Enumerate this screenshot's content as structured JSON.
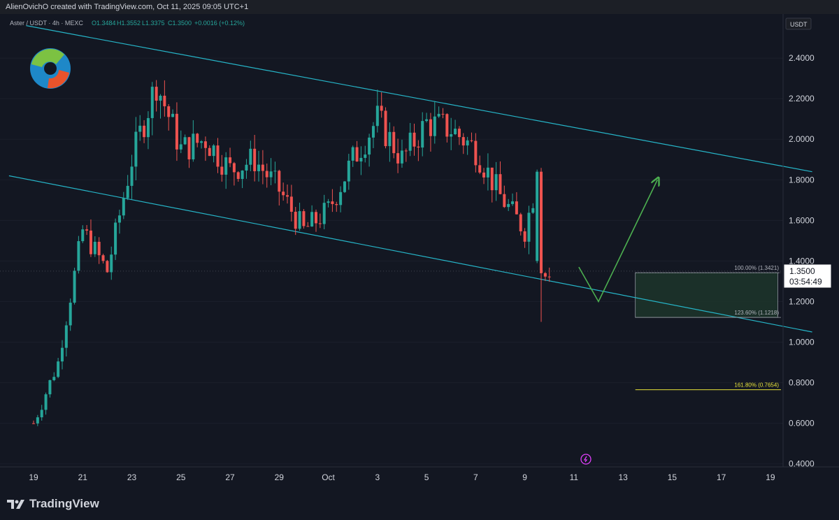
{
  "header": {
    "credit": "AlienOvichO created with TradingView.com, Oct 11, 2025 09:05 UTC+1"
  },
  "legend": {
    "symbol": "Aster / USDT · 4h · MEXC",
    "open": "O1.3484",
    "high": "H1.3552",
    "low": "L1.3375",
    "close": "C1.3500",
    "change": "+0.0016 (+0.12%)"
  },
  "currency": "USDT",
  "price_tag": {
    "price": "1.3500",
    "countdown": "03:54:49"
  },
  "brand": "TradingView",
  "colors": {
    "background": "#131722",
    "up": "#26a69a",
    "down": "#ef5350",
    "channel": "#26b5c8",
    "zone": "#1f3a2c",
    "projection": "#4caf50",
    "fib_yellow": "#e6e13a"
  },
  "chart_data": {
    "type": "candlestick",
    "title": "",
    "xlabel": "",
    "ylabel": "",
    "ylim": [
      0.4,
      2.6
    ],
    "y_ticks": [
      "2.4000",
      "2.2000",
      "2.0000",
      "1.8000",
      "1.6000",
      "1.4000",
      "1.2000",
      "1.0000",
      "0.8000",
      "0.6000",
      "0.4000"
    ],
    "x_ticks": [
      "19",
      "21",
      "23",
      "25",
      "27",
      "29",
      "Oct",
      "3",
      "5",
      "7",
      "9",
      "11",
      "13",
      "15",
      "17",
      "19"
    ],
    "channel": {
      "upper": [
        [
          -0.3,
          2.56
        ],
        [
          31.7,
          1.84
        ]
      ],
      "lower": [
        [
          -1.0,
          1.82
        ],
        [
          31.7,
          1.05
        ]
      ]
    },
    "zone": {
      "from": 24.5,
      "to": 30.3,
      "top": 1.3421,
      "bottom": 1.1218
    },
    "fib_levels": [
      {
        "label": "100.00% (1.3421)",
        "value": 1.3421
      },
      {
        "label": "123.60% (1.1218)",
        "value": 1.1218
      },
      {
        "label": "161.80% (0.7654)",
        "value": 0.7654
      }
    ],
    "projection": [
      [
        22.2,
        1.37
      ],
      [
        23.0,
        1.2
      ],
      [
        25.4,
        1.8
      ]
    ],
    "anchors": [
      [
        0,
        0.6
      ],
      [
        1,
        0.9
      ],
      [
        2,
        1.55
      ],
      [
        3,
        1.35
      ],
      [
        4,
        1.9
      ],
      [
        5,
        2.28
      ],
      [
        6,
        1.95
      ],
      [
        7,
        2.0
      ],
      [
        8,
        1.85
      ],
      [
        9,
        1.9
      ],
      [
        10,
        1.75
      ],
      [
        11,
        1.55
      ],
      [
        12,
        1.65
      ],
      [
        13,
        1.9
      ],
      [
        14,
        2.1
      ],
      [
        15,
        1.9
      ],
      [
        16,
        2.08
      ],
      [
        17,
        2.05
      ],
      [
        18,
        1.95
      ],
      [
        19,
        1.72
      ],
      [
        20,
        1.55
      ],
      [
        20.5,
        1.8
      ],
      [
        20.7,
        1.33
      ],
      [
        21.0,
        1.35
      ]
    ]
  }
}
